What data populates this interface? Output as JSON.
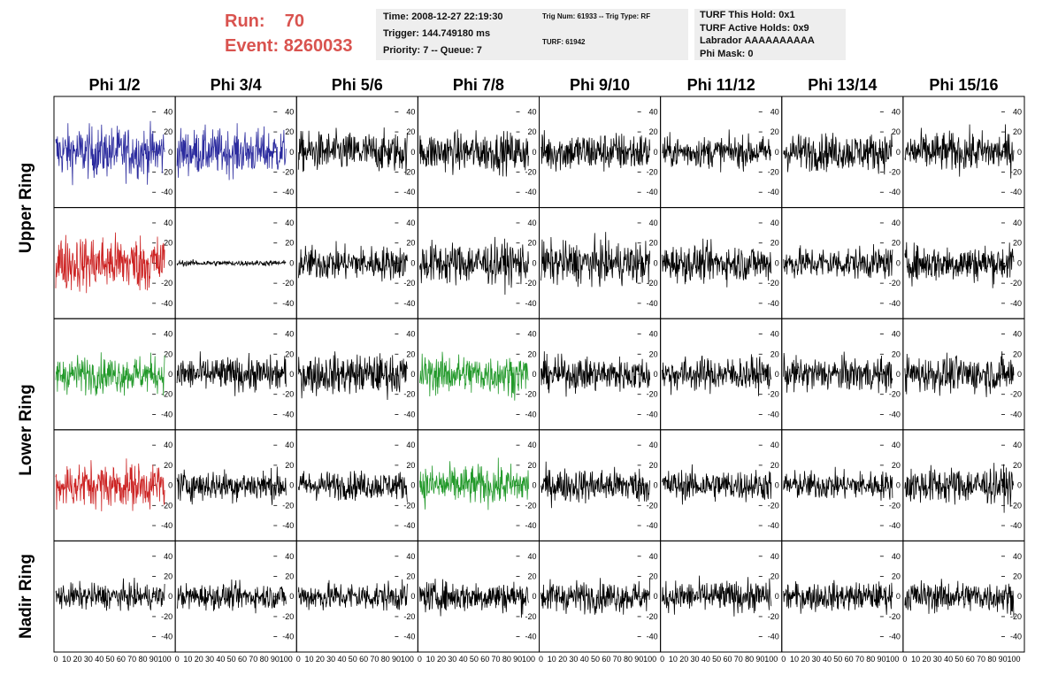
{
  "header": {
    "run_label": "Run:",
    "run_value": "70",
    "event_label": "Event:",
    "event_value": "8260033",
    "time": "Time: 2008-12-27 22:19:30",
    "trigger": "Trigger: 144.749180 ms",
    "priority": "Priority: 7 -- Queue: 7",
    "trig_num": "Trig Num: 61933 -- Trig Type: RF",
    "turf": "TURF: 61942",
    "turf_this_hold": "TURF This Hold: 0x1",
    "turf_active_holds": "TURF Active Holds: 0x9",
    "labrador": "Labrador AAAAAAAAAA",
    "phi_mask": "Phi Mask: 0"
  },
  "chart_data": {
    "type": "line",
    "columns": [
      "Phi 1/2",
      "Phi 3/4",
      "Phi 5/6",
      "Phi 7/8",
      "Phi 9/10",
      "Phi 11/12",
      "Phi 13/14",
      "Phi 15/16"
    ],
    "rows": [
      "Upper Ring",
      "Upper Ring",
      "Lower Ring",
      "Lower Ring",
      "Nadir Ring"
    ],
    "row_labels": [
      {
        "text": "Upper Ring",
        "rows": [
          0,
          1
        ]
      },
      {
        "text": "Lower Ring",
        "rows": [
          2,
          3
        ]
      },
      {
        "text": "Nadir Ring",
        "rows": [
          4
        ]
      }
    ],
    "xlim": [
      0,
      100
    ],
    "xticks": [
      0,
      10,
      20,
      30,
      40,
      50,
      60,
      70,
      80,
      90,
      100
    ],
    "ylim": [
      -50,
      50
    ],
    "yticks": [
      -40,
      -20,
      0,
      20,
      40
    ],
    "colors": {
      "default": "#000000",
      "blue": "#2b2b9e",
      "red": "#cc2222",
      "green": "#22992a"
    },
    "highlighted": [
      {
        "row": 0,
        "col": 0,
        "color": "blue"
      },
      {
        "row": 0,
        "col": 1,
        "color": "blue"
      },
      {
        "row": 1,
        "col": 0,
        "color": "red"
      },
      {
        "row": 2,
        "col": 0,
        "color": "green"
      },
      {
        "row": 2,
        "col": 3,
        "color": "green"
      },
      {
        "row": 3,
        "col": 0,
        "color": "red"
      },
      {
        "row": 3,
        "col": 3,
        "color": "green"
      }
    ],
    "amplitudes": [
      [
        18,
        16,
        14,
        14,
        14,
        11,
        13,
        14
      ],
      [
        20,
        2,
        12,
        15,
        15,
        13,
        11,
        13
      ],
      [
        13,
        12,
        14,
        14,
        12,
        12,
        12,
        13
      ],
      [
        16,
        11,
        10,
        14,
        12,
        11,
        10,
        13
      ],
      [
        9,
        9,
        10,
        11,
        11,
        11,
        10,
        11
      ]
    ],
    "samples": 260
  }
}
